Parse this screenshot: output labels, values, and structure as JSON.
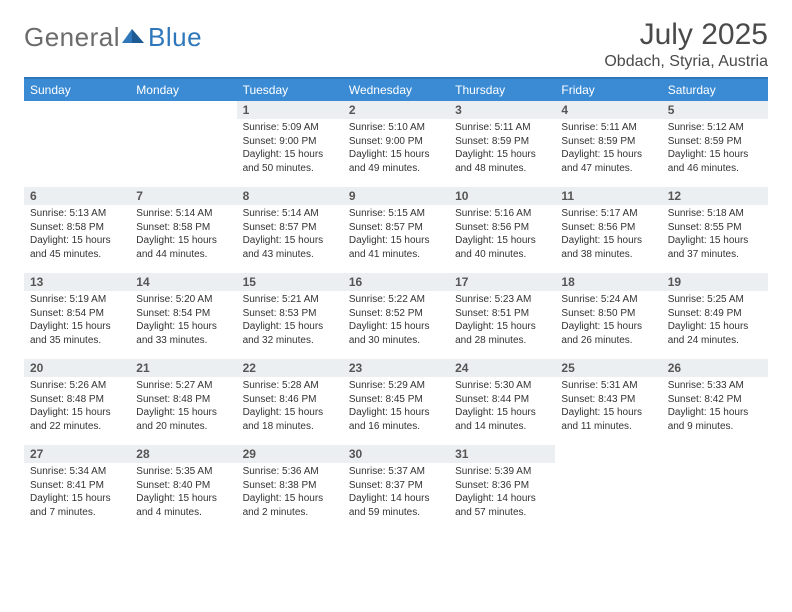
{
  "brand": {
    "part1": "General",
    "part2": "Blue"
  },
  "title": "July 2025",
  "location": "Obdach, Styria, Austria",
  "colors": {
    "header_bg": "#3b8bd4",
    "header_rule": "#2f77bb",
    "daynum_bg": "#eceff1",
    "text": "#333333",
    "title_text": "#4a4a4a",
    "logo_gray": "#6b6b6b",
    "logo_blue": "#2f77bb"
  },
  "columns": [
    "Sunday",
    "Monday",
    "Tuesday",
    "Wednesday",
    "Thursday",
    "Friday",
    "Saturday"
  ],
  "weeks": [
    [
      {
        "n": "",
        "sr": "",
        "ss": "",
        "dl": ""
      },
      {
        "n": "",
        "sr": "",
        "ss": "",
        "dl": ""
      },
      {
        "n": "1",
        "sr": "Sunrise: 5:09 AM",
        "ss": "Sunset: 9:00 PM",
        "dl": "Daylight: 15 hours and 50 minutes."
      },
      {
        "n": "2",
        "sr": "Sunrise: 5:10 AM",
        "ss": "Sunset: 9:00 PM",
        "dl": "Daylight: 15 hours and 49 minutes."
      },
      {
        "n": "3",
        "sr": "Sunrise: 5:11 AM",
        "ss": "Sunset: 8:59 PM",
        "dl": "Daylight: 15 hours and 48 minutes."
      },
      {
        "n": "4",
        "sr": "Sunrise: 5:11 AM",
        "ss": "Sunset: 8:59 PM",
        "dl": "Daylight: 15 hours and 47 minutes."
      },
      {
        "n": "5",
        "sr": "Sunrise: 5:12 AM",
        "ss": "Sunset: 8:59 PM",
        "dl": "Daylight: 15 hours and 46 minutes."
      }
    ],
    [
      {
        "n": "6",
        "sr": "Sunrise: 5:13 AM",
        "ss": "Sunset: 8:58 PM",
        "dl": "Daylight: 15 hours and 45 minutes."
      },
      {
        "n": "7",
        "sr": "Sunrise: 5:14 AM",
        "ss": "Sunset: 8:58 PM",
        "dl": "Daylight: 15 hours and 44 minutes."
      },
      {
        "n": "8",
        "sr": "Sunrise: 5:14 AM",
        "ss": "Sunset: 8:57 PM",
        "dl": "Daylight: 15 hours and 43 minutes."
      },
      {
        "n": "9",
        "sr": "Sunrise: 5:15 AM",
        "ss": "Sunset: 8:57 PM",
        "dl": "Daylight: 15 hours and 41 minutes."
      },
      {
        "n": "10",
        "sr": "Sunrise: 5:16 AM",
        "ss": "Sunset: 8:56 PM",
        "dl": "Daylight: 15 hours and 40 minutes."
      },
      {
        "n": "11",
        "sr": "Sunrise: 5:17 AM",
        "ss": "Sunset: 8:56 PM",
        "dl": "Daylight: 15 hours and 38 minutes."
      },
      {
        "n": "12",
        "sr": "Sunrise: 5:18 AM",
        "ss": "Sunset: 8:55 PM",
        "dl": "Daylight: 15 hours and 37 minutes."
      }
    ],
    [
      {
        "n": "13",
        "sr": "Sunrise: 5:19 AM",
        "ss": "Sunset: 8:54 PM",
        "dl": "Daylight: 15 hours and 35 minutes."
      },
      {
        "n": "14",
        "sr": "Sunrise: 5:20 AM",
        "ss": "Sunset: 8:54 PM",
        "dl": "Daylight: 15 hours and 33 minutes."
      },
      {
        "n": "15",
        "sr": "Sunrise: 5:21 AM",
        "ss": "Sunset: 8:53 PM",
        "dl": "Daylight: 15 hours and 32 minutes."
      },
      {
        "n": "16",
        "sr": "Sunrise: 5:22 AM",
        "ss": "Sunset: 8:52 PM",
        "dl": "Daylight: 15 hours and 30 minutes."
      },
      {
        "n": "17",
        "sr": "Sunrise: 5:23 AM",
        "ss": "Sunset: 8:51 PM",
        "dl": "Daylight: 15 hours and 28 minutes."
      },
      {
        "n": "18",
        "sr": "Sunrise: 5:24 AM",
        "ss": "Sunset: 8:50 PM",
        "dl": "Daylight: 15 hours and 26 minutes."
      },
      {
        "n": "19",
        "sr": "Sunrise: 5:25 AM",
        "ss": "Sunset: 8:49 PM",
        "dl": "Daylight: 15 hours and 24 minutes."
      }
    ],
    [
      {
        "n": "20",
        "sr": "Sunrise: 5:26 AM",
        "ss": "Sunset: 8:48 PM",
        "dl": "Daylight: 15 hours and 22 minutes."
      },
      {
        "n": "21",
        "sr": "Sunrise: 5:27 AM",
        "ss": "Sunset: 8:48 PM",
        "dl": "Daylight: 15 hours and 20 minutes."
      },
      {
        "n": "22",
        "sr": "Sunrise: 5:28 AM",
        "ss": "Sunset: 8:46 PM",
        "dl": "Daylight: 15 hours and 18 minutes."
      },
      {
        "n": "23",
        "sr": "Sunrise: 5:29 AM",
        "ss": "Sunset: 8:45 PM",
        "dl": "Daylight: 15 hours and 16 minutes."
      },
      {
        "n": "24",
        "sr": "Sunrise: 5:30 AM",
        "ss": "Sunset: 8:44 PM",
        "dl": "Daylight: 15 hours and 14 minutes."
      },
      {
        "n": "25",
        "sr": "Sunrise: 5:31 AM",
        "ss": "Sunset: 8:43 PM",
        "dl": "Daylight: 15 hours and 11 minutes."
      },
      {
        "n": "26",
        "sr": "Sunrise: 5:33 AM",
        "ss": "Sunset: 8:42 PM",
        "dl": "Daylight: 15 hours and 9 minutes."
      }
    ],
    [
      {
        "n": "27",
        "sr": "Sunrise: 5:34 AM",
        "ss": "Sunset: 8:41 PM",
        "dl": "Daylight: 15 hours and 7 minutes."
      },
      {
        "n": "28",
        "sr": "Sunrise: 5:35 AM",
        "ss": "Sunset: 8:40 PM",
        "dl": "Daylight: 15 hours and 4 minutes."
      },
      {
        "n": "29",
        "sr": "Sunrise: 5:36 AM",
        "ss": "Sunset: 8:38 PM",
        "dl": "Daylight: 15 hours and 2 minutes."
      },
      {
        "n": "30",
        "sr": "Sunrise: 5:37 AM",
        "ss": "Sunset: 8:37 PM",
        "dl": "Daylight: 14 hours and 59 minutes."
      },
      {
        "n": "31",
        "sr": "Sunrise: 5:39 AM",
        "ss": "Sunset: 8:36 PM",
        "dl": "Daylight: 14 hours and 57 minutes."
      },
      {
        "n": "",
        "sr": "",
        "ss": "",
        "dl": ""
      },
      {
        "n": "",
        "sr": "",
        "ss": "",
        "dl": ""
      }
    ]
  ]
}
